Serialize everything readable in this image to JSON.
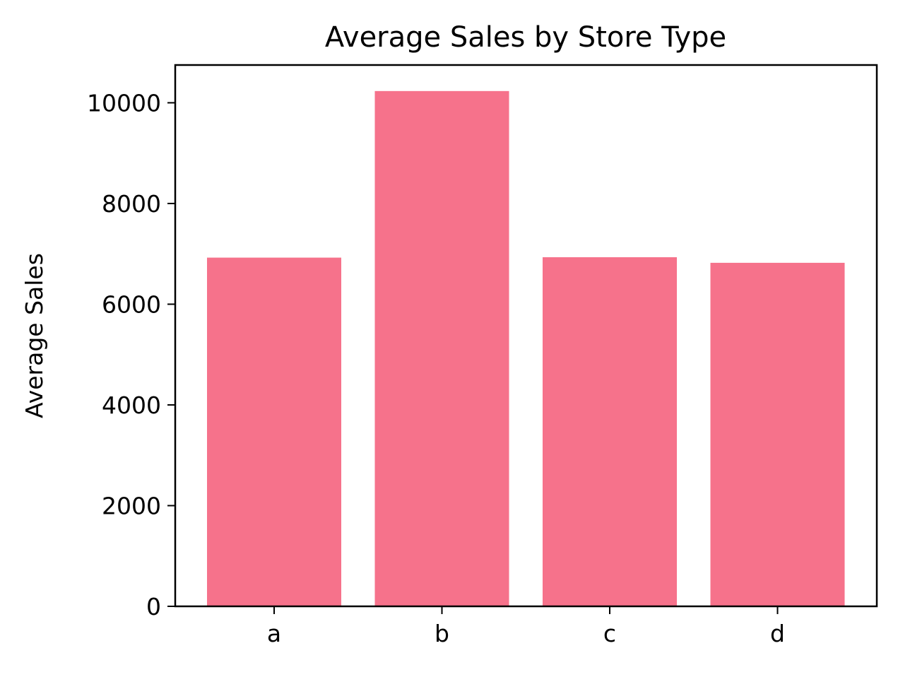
{
  "chart_data": {
    "type": "bar",
    "title": "Average Sales by Store Type",
    "xlabel": "",
    "ylabel": "Average Sales",
    "categories": [
      "a",
      "b",
      "c",
      "d"
    ],
    "values": [
      6925,
      10233,
      6933,
      6822
    ],
    "ylim": [
      0,
      10750
    ],
    "yticks": [
      0,
      2000,
      4000,
      6000,
      8000,
      10000
    ],
    "ytick_labels": [
      "0",
      "2000",
      "4000",
      "6000",
      "8000",
      "10000"
    ],
    "bar_color": "#f6728b",
    "grid": false,
    "legend": "none"
  }
}
